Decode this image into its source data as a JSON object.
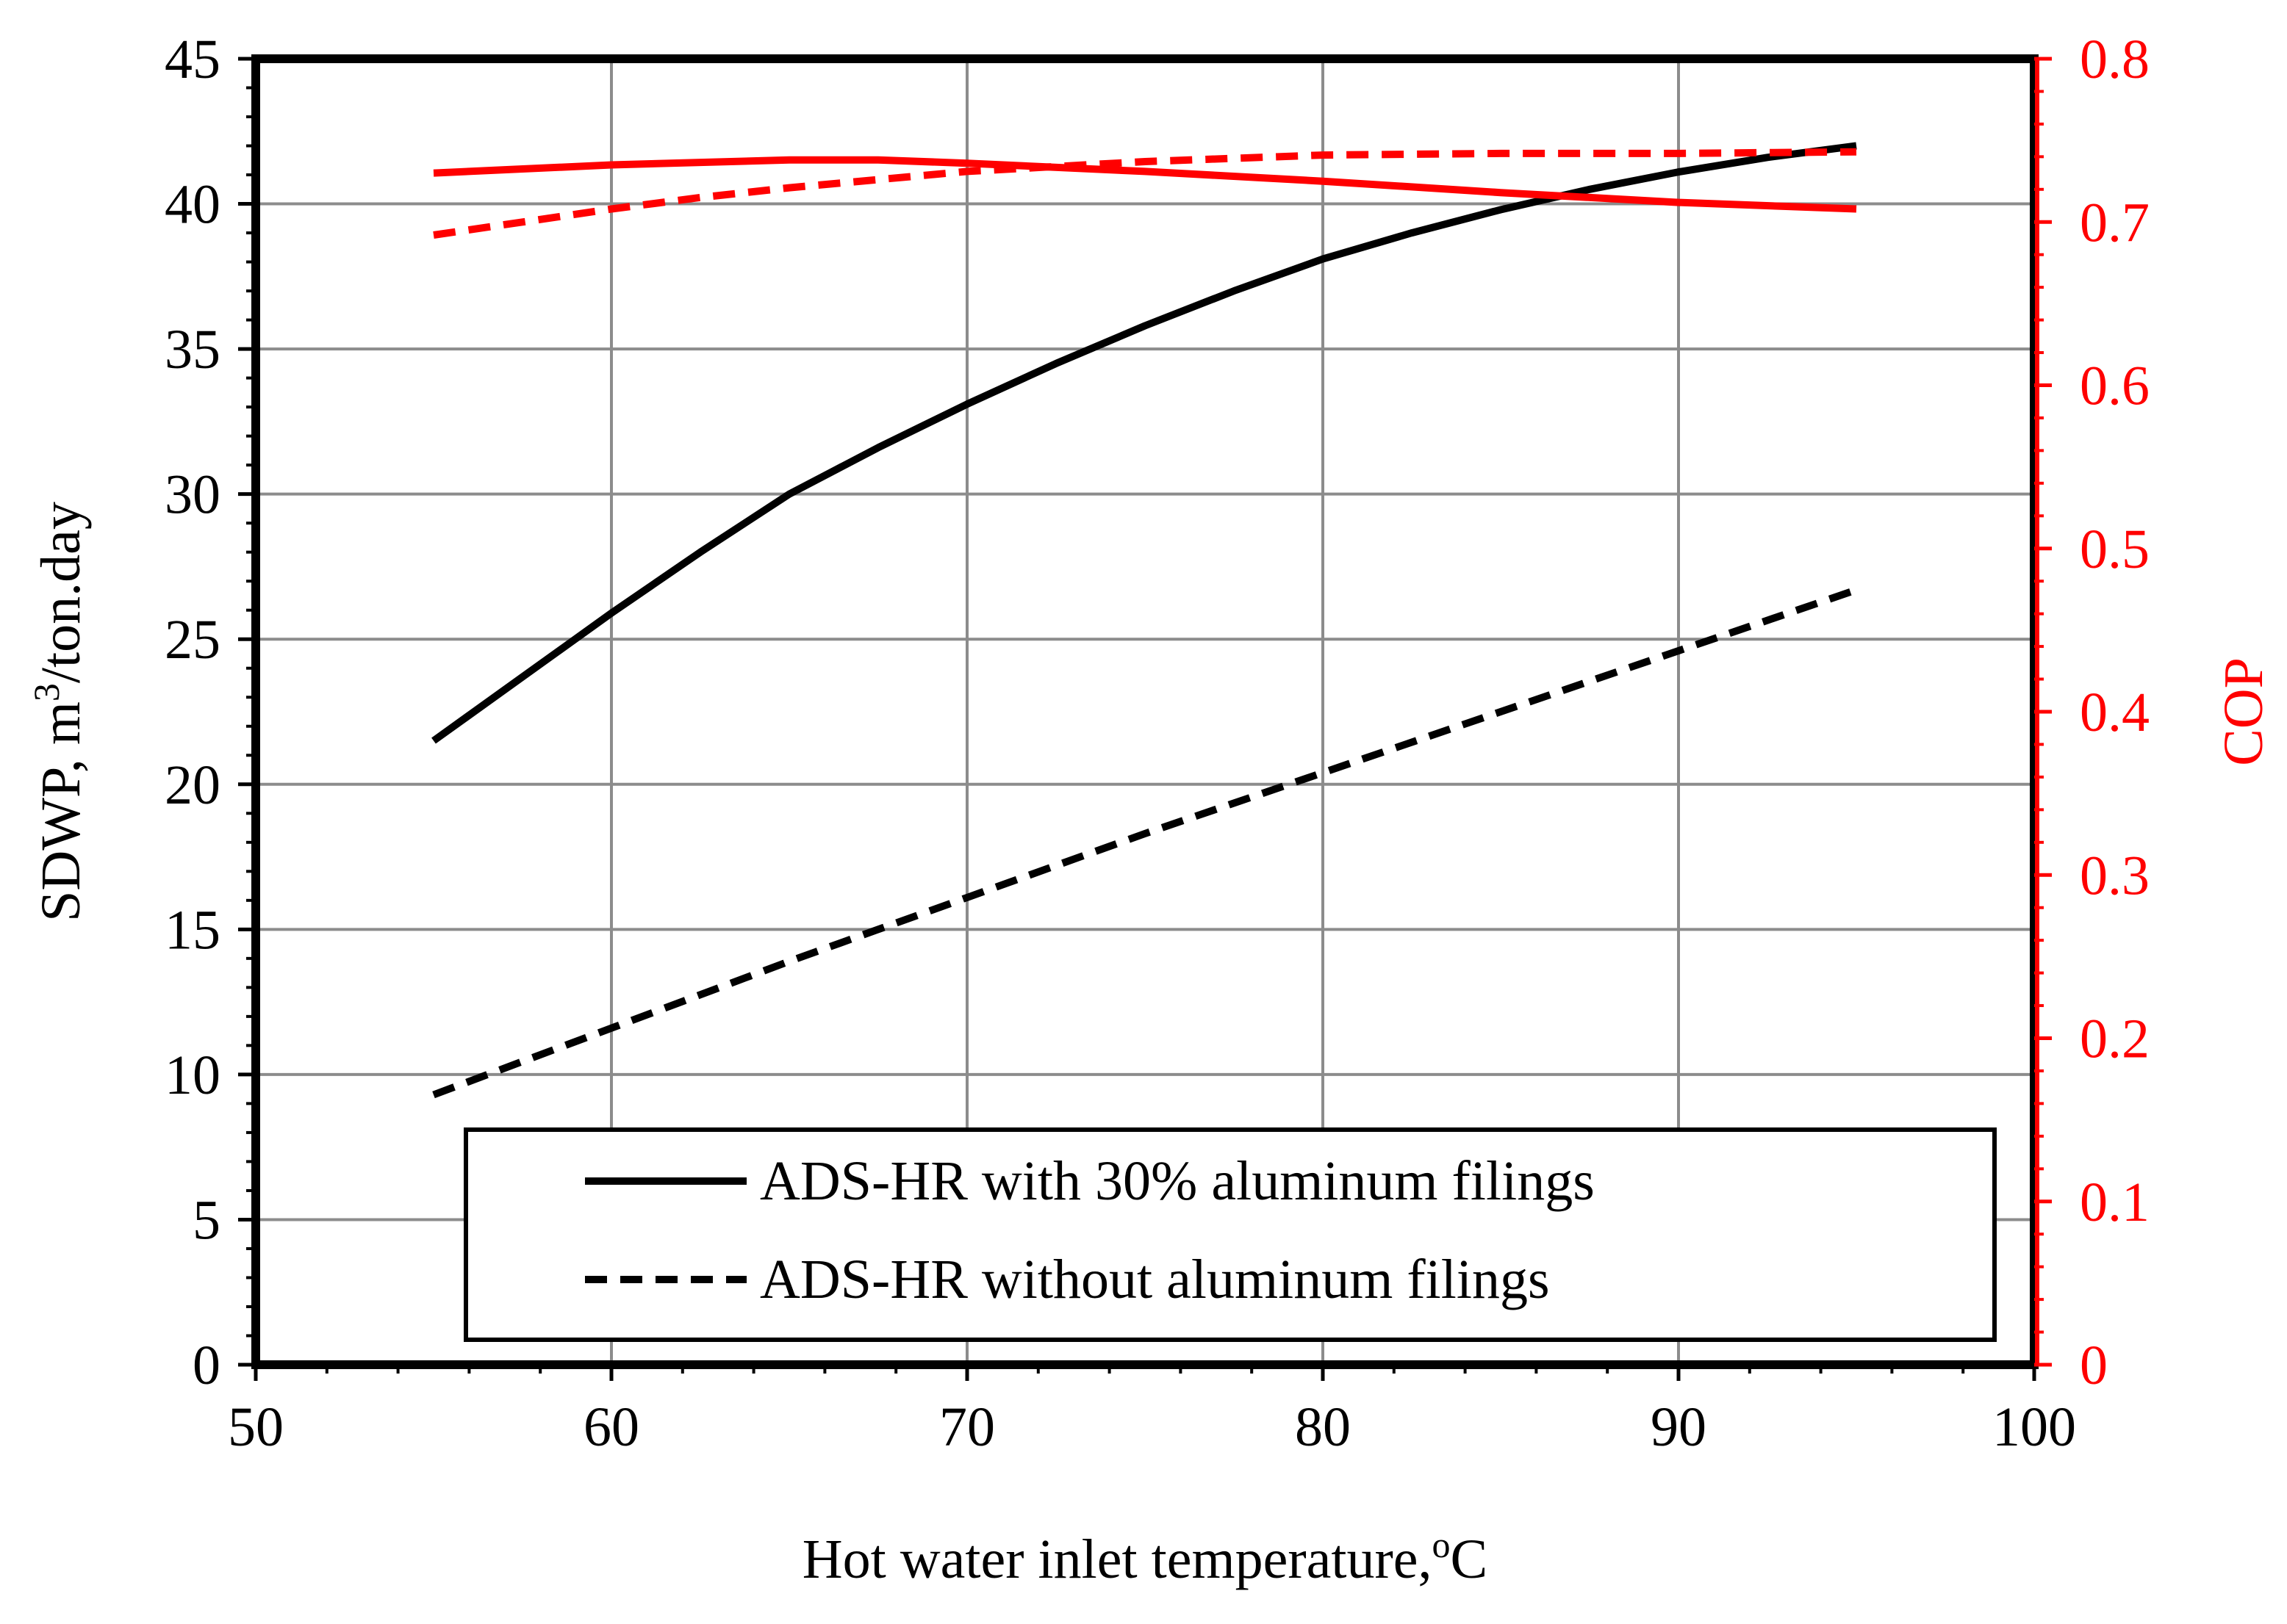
{
  "chart_data": {
    "type": "line",
    "xlabel": "Hot water inlet temperature,",
    "xlabel_sup": "o",
    "xlabel_unit": "C",
    "ylabel_left_prefix": "SDWP, m",
    "ylabel_left_sup": "3",
    "ylabel_left_suffix": "/ton.day",
    "ylabel_right": "COP",
    "xlim": [
      50,
      100
    ],
    "ylim_left": [
      0,
      45
    ],
    "ylim_right": [
      0,
      0.8
    ],
    "x_ticks": [
      "50",
      "60",
      "70",
      "80",
      "90",
      "100"
    ],
    "y_left_ticks": [
      "0",
      "5",
      "10",
      "15",
      "20",
      "25",
      "30",
      "35",
      "40",
      "45"
    ],
    "y_right_ticks": [
      "0",
      "0.1",
      "0.2",
      "0.3",
      "0.4",
      "0.5",
      "0.6",
      "0.7",
      "0.8"
    ],
    "grid": true,
    "legend_position": "bottom-right",
    "colors": {
      "left_axis": "#000000",
      "right_axis": "#ff0000",
      "grid": "#8c8c8c"
    },
    "legend": [
      {
        "label": "ADS-HR with 30%  aluminum filings",
        "style": "solid"
      },
      {
        "label": "ADS-HR without aluminum filings",
        "style": "dashed"
      }
    ],
    "series": [
      {
        "axis": "left",
        "color": "#000000",
        "style": "solid",
        "x": [
          55,
          57.5,
          60,
          62.5,
          65,
          67.5,
          70,
          72.5,
          75,
          77.5,
          80,
          82.5,
          85,
          87.5,
          90,
          92.5,
          95
        ],
        "values": [
          21.5,
          23.7,
          25.9,
          28.0,
          30.0,
          31.6,
          33.1,
          34.5,
          35.8,
          37.0,
          38.1,
          39.0,
          39.8,
          40.5,
          41.1,
          41.6,
          42.0
        ]
      },
      {
        "axis": "left",
        "color": "#000000",
        "style": "dashed",
        "x": [
          55,
          60,
          65,
          70,
          75,
          80,
          85,
          90,
          95
        ],
        "values": [
          9.3,
          11.6,
          13.9,
          16.1,
          18.3,
          20.4,
          22.5,
          24.6,
          26.7
        ]
      },
      {
        "axis": "right",
        "color": "#ff0000",
        "style": "solid",
        "x": [
          55,
          60,
          65,
          67.5,
          70,
          75,
          80,
          85,
          90,
          95
        ],
        "values": [
          0.73,
          0.735,
          0.738,
          0.738,
          0.736,
          0.731,
          0.725,
          0.718,
          0.712,
          0.708
        ]
      },
      {
        "axis": "right",
        "color": "#ff0000",
        "style": "dashed",
        "x": [
          55,
          57.5,
          60,
          62.5,
          65,
          67.5,
          70,
          75,
          80,
          85,
          90,
          95
        ],
        "values": [
          0.692,
          0.7,
          0.708,
          0.715,
          0.721,
          0.726,
          0.731,
          0.737,
          0.741,
          0.742,
          0.742,
          0.743
        ]
      }
    ]
  }
}
